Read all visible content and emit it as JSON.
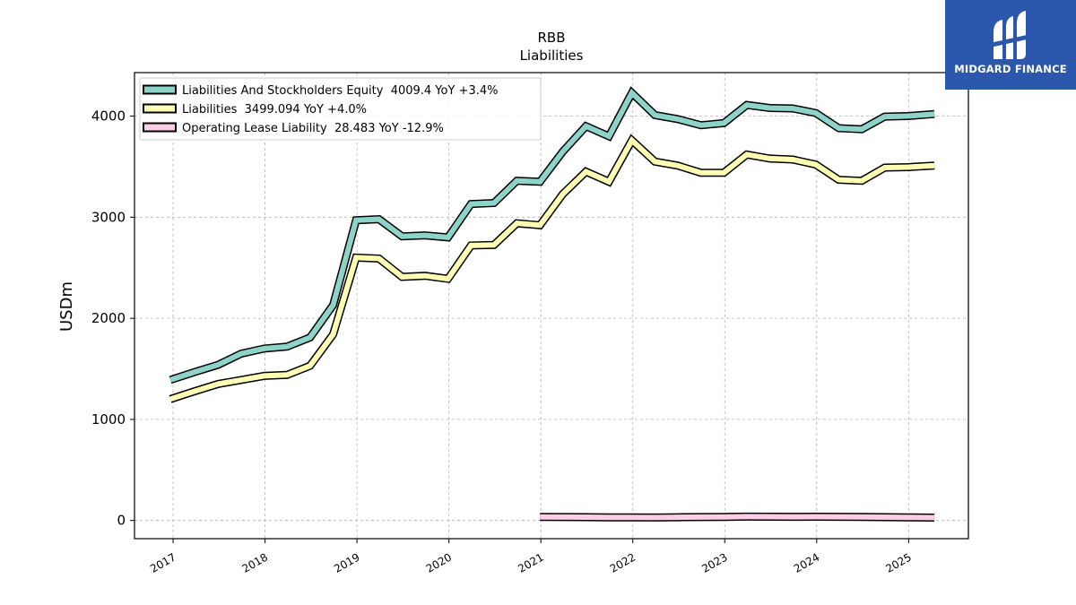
{
  "logo": {
    "text": "MIDGARD FINANCE"
  },
  "chart_data": {
    "type": "line",
    "title": "RBB",
    "subtitle": "Liabilities",
    "ylabel": "USDm",
    "xlabel": "",
    "ylim": [
      -180,
      4430
    ],
    "xlim": [
      2016.58,
      2025.65
    ],
    "yticks": [
      0,
      1000,
      2000,
      3000,
      4000
    ],
    "ytick_labels": [
      "0",
      "1000",
      "2000",
      "3000",
      "4000"
    ],
    "xticks": [
      2017,
      2018,
      2019,
      2020,
      2021,
      2022,
      2023,
      2024,
      2025
    ],
    "xtick_labels": [
      "2017",
      "2018",
      "2019",
      "2020",
      "2021",
      "2022",
      "2023",
      "2024",
      "2025"
    ],
    "grid": true,
    "legend_position": "top-left",
    "series": [
      {
        "name": "Liabilities And Stockholders Equity",
        "legend_label": "Liabilities And Stockholders Equity  4009.4 YoY +3.4%",
        "color": "#8dd3c7",
        "x": [
          2016.97,
          2017.24,
          2017.49,
          2017.74,
          2017.99,
          2018.24,
          2018.49,
          2018.74,
          2018.99,
          2019.24,
          2019.49,
          2019.74,
          2019.99,
          2020.24,
          2020.49,
          2020.74,
          2020.99,
          2021.24,
          2021.49,
          2021.74,
          2021.99,
          2022.24,
          2022.49,
          2022.74,
          2022.99,
          2023.24,
          2023.49,
          2023.74,
          2023.99,
          2024.24,
          2024.49,
          2024.74,
          2024.99,
          2025.28
        ],
        "y": [
          1390,
          1470,
          1540,
          1650,
          1700,
          1720,
          1810,
          2130,
          2970,
          2980,
          2810,
          2820,
          2800,
          3130,
          3140,
          3360,
          3350,
          3650,
          3900,
          3800,
          4230,
          4010,
          3970,
          3910,
          3930,
          4110,
          4080,
          4075,
          4030,
          3880,
          3870,
          3995,
          4000,
          4020
        ]
      },
      {
        "name": "Liabilities",
        "legend_label": "Liabilities  3499.094 YoY +4.0%",
        "color": "#ffffb3",
        "x": [
          2016.97,
          2017.24,
          2017.49,
          2017.74,
          2017.99,
          2018.24,
          2018.49,
          2018.74,
          2018.99,
          2019.24,
          2019.49,
          2019.74,
          2019.99,
          2020.24,
          2020.49,
          2020.74,
          2020.99,
          2021.24,
          2021.49,
          2021.74,
          2021.99,
          2022.24,
          2022.49,
          2022.74,
          2022.99,
          2023.24,
          2023.49,
          2023.74,
          2023.99,
          2024.24,
          2024.49,
          2024.74,
          2024.99,
          2025.28
        ],
        "y": [
          1200,
          1280,
          1350,
          1390,
          1430,
          1440,
          1530,
          1840,
          2600,
          2590,
          2410,
          2420,
          2390,
          2720,
          2725,
          2940,
          2920,
          3230,
          3450,
          3350,
          3760,
          3550,
          3510,
          3440,
          3440,
          3620,
          3580,
          3570,
          3520,
          3370,
          3360,
          3490,
          3495,
          3510
        ]
      },
      {
        "name": "Operating Lease Liability",
        "legend_label": "Operating Lease Liability  28.483 YoY -12.9%",
        "color": "#fccde5",
        "x": [
          2020.99,
          2021.24,
          2021.49,
          2021.74,
          2021.99,
          2022.24,
          2022.49,
          2022.74,
          2022.99,
          2023.24,
          2023.49,
          2023.74,
          2023.99,
          2024.24,
          2024.49,
          2024.74,
          2024.99,
          2025.28
        ],
        "y": [
          35,
          34,
          33,
          31,
          30,
          29,
          32,
          34,
          35,
          38,
          37,
          36,
          37,
          36,
          35,
          33,
          31,
          28
        ]
      }
    ]
  }
}
